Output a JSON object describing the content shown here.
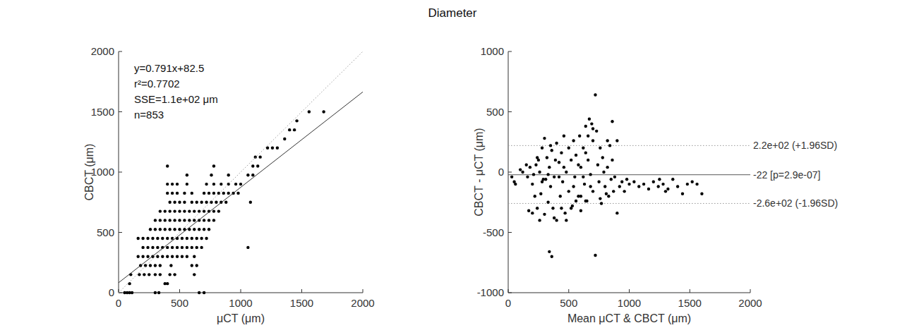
{
  "title": "Diameter",
  "chart_data": [
    {
      "type": "scatter",
      "xlabel": "μCT (μm)",
      "ylabel": "CBCT (μm)",
      "xlim": [
        0,
        2000
      ],
      "ylim": [
        0,
        2000
      ],
      "xticks": [
        0,
        500,
        1000,
        1500,
        2000
      ],
      "yticks": [
        0,
        500,
        1000,
        1500,
        2000
      ],
      "grid": false,
      "annotations": [
        "y=0.791x+82.5",
        "r²=0.7702",
        "SSE=1.1e+02 μm",
        "n=853"
      ],
      "series": [
        {
          "type": "scatter",
          "color": "#000000",
          "marker": "circle",
          "x": [
            50,
            70,
            90,
            110,
            300,
            330,
            660,
            700,
            90,
            380,
            400,
            100,
            170,
            210,
            250,
            300,
            340,
            420,
            460,
            620,
            180,
            220,
            260,
            300,
            340,
            430,
            600,
            640,
            160,
            200,
            240,
            280,
            320,
            360,
            400,
            440,
            480,
            520,
            560,
            620,
            200,
            240,
            280,
            320,
            360,
            400,
            440,
            480,
            520,
            560,
            600,
            640,
            680,
            1060,
            160,
            200,
            240,
            280,
            320,
            360,
            400,
            440,
            480,
            520,
            560,
            600,
            640,
            680,
            720,
            260,
            300,
            340,
            380,
            420,
            460,
            500,
            540,
            580,
            620,
            660,
            700,
            740,
            300,
            340,
            380,
            420,
            460,
            500,
            540,
            580,
            620,
            660,
            700,
            740,
            780,
            340,
            380,
            420,
            460,
            500,
            540,
            580,
            620,
            660,
            700,
            740,
            780,
            820,
            420,
            460,
            500,
            540,
            600,
            640,
            680,
            720,
            760,
            800,
            840,
            880,
            1080,
            400,
            440,
            480,
            540,
            600,
            700,
            740,
            780,
            820,
            860,
            900,
            940,
            980,
            400,
            440,
            480,
            560,
            720,
            780,
            840,
            900,
            960,
            1000,
            560,
            760,
            900,
            1060,
            1100,
            400,
            780,
            1100,
            1140,
            1120,
            1160,
            1220,
            1260,
            1300,
            1360,
            1400,
            1440,
            1460,
            1560,
            1680
          ],
          "values": [
            0,
            0,
            0,
            0,
            0,
            0,
            0,
            0,
            75,
            75,
            75,
            150,
            150,
            150,
            150,
            150,
            150,
            150,
            150,
            150,
            225,
            225,
            225,
            225,
            225,
            225,
            225,
            225,
            300,
            300,
            300,
            300,
            300,
            300,
            300,
            300,
            300,
            300,
            300,
            300,
            375,
            375,
            375,
            375,
            375,
            375,
            375,
            375,
            375,
            375,
            375,
            375,
            375,
            375,
            450,
            450,
            450,
            450,
            450,
            450,
            450,
            450,
            450,
            450,
            450,
            450,
            450,
            450,
            450,
            525,
            525,
            525,
            525,
            525,
            525,
            525,
            525,
            525,
            525,
            525,
            525,
            525,
            600,
            600,
            600,
            600,
            600,
            600,
            600,
            600,
            600,
            600,
            600,
            600,
            600,
            675,
            675,
            675,
            675,
            675,
            675,
            675,
            675,
            675,
            675,
            675,
            675,
            675,
            750,
            750,
            750,
            750,
            750,
            750,
            750,
            750,
            750,
            750,
            750,
            750,
            750,
            825,
            825,
            825,
            825,
            825,
            825,
            825,
            825,
            825,
            825,
            825,
            825,
            825,
            900,
            900,
            900,
            900,
            900,
            900,
            900,
            900,
            900,
            900,
            975,
            975,
            975,
            975,
            975,
            1050,
            1050,
            1050,
            1050,
            1125,
            1125,
            1200,
            1200,
            1200,
            1275,
            1350,
            1350,
            1425,
            1500,
            1500
          ]
        },
        {
          "type": "line",
          "color": "#333333",
          "line_style": "solid",
          "x": [
            0,
            2000
          ],
          "values": [
            82.5,
            1664.5
          ]
        },
        {
          "type": "line",
          "color": "#9a9a9a",
          "line_style": "dotted",
          "x": [
            0,
            2000
          ],
          "values": [
            0,
            2000
          ]
        }
      ]
    },
    {
      "type": "scatter",
      "xlabel": "Mean μCT & CBCT (μm)",
      "ylabel": "CBCT - μCT (μm)",
      "xlim": [
        0,
        2000
      ],
      "ylim": [
        -1000,
        1000
      ],
      "xticks": [
        0,
        500,
        1000,
        1500,
        2000
      ],
      "yticks": [
        -1000,
        -500,
        0,
        500,
        1000
      ],
      "grid": false,
      "reference_lines": [
        {
          "value": 220,
          "label": "2.2e+02 (+1.96SD)",
          "line_style": "dotted",
          "color": "#9a9a9a"
        },
        {
          "value": -22,
          "label": "-22 [p=2.9e-07]",
          "line_style": "solid",
          "color": "#555555"
        },
        {
          "value": -260,
          "label": "-2.6e+02 (-1.96SD)",
          "line_style": "dotted",
          "color": "#9a9a9a"
        }
      ],
      "series": [
        {
          "type": "scatter",
          "color": "#000000",
          "marker": "circle",
          "x": [
            30,
            50,
            60,
            100,
            150,
            120,
            200,
            220,
            240,
            250,
            260,
            270,
            280,
            290,
            300,
            300,
            320,
            330,
            340,
            350,
            360,
            370,
            380,
            400,
            400,
            420,
            430,
            440,
            450,
            460,
            470,
            480,
            500,
            500,
            520,
            530,
            540,
            550,
            560,
            580,
            590,
            600,
            600,
            620,
            630,
            640,
            650,
            660,
            670,
            680,
            690,
            700,
            700,
            720,
            720,
            730,
            740,
            750,
            760,
            770,
            780,
            790,
            800,
            820,
            830,
            840,
            850,
            860,
            870,
            880,
            900,
            900,
            920,
            940,
            960,
            980,
            160,
            180,
            170,
            200,
            240,
            260,
            310,
            340,
            360,
            380,
            440,
            480,
            520,
            560,
            600,
            640,
            680,
            620,
            580,
            540,
            460,
            420,
            390,
            350,
            330,
            280,
            230,
            210,
            640,
            700,
            760,
            810,
            860,
            660,
            820,
            1000,
            1040,
            1080,
            1120,
            1160,
            1200,
            1240,
            1280,
            1320,
            1360,
            1400,
            1440,
            1480,
            1520,
            1600,
            1560,
            1300,
            1250
          ],
          "values": [
            -40,
            -80,
            -100,
            20,
            60,
            0,
            -100,
            -200,
            -300,
            100,
            0,
            -180,
            200,
            -60,
            280,
            -350,
            120,
            -250,
            40,
            -120,
            180,
            -300,
            -40,
            240,
            -400,
            80,
            -200,
            160,
            -80,
            300,
            -340,
            0,
            200,
            -160,
            100,
            -280,
            260,
            -40,
            140,
            -200,
            300,
            40,
            -320,
            200,
            -100,
            380,
            -240,
            100,
            440,
            -20,
            400,
            260,
            -160,
            640,
            -690,
            340,
            60,
            -80,
            200,
            -260,
            120,
            0,
            -120,
            40,
            -200,
            220,
            -60,
            100,
            -160,
            -40,
            260,
            -340,
            -120,
            -80,
            -160,
            -60,
            -40,
            40,
            -320,
            -340,
            120,
            -400,
            -60,
            -660,
            -700,
            -380,
            -300,
            -400,
            -300,
            -240,
            -200,
            -240,
            -120,
            -40,
            60,
            -120,
            40,
            -40,
            100,
            220,
            -20,
            -80,
            60,
            -20,
            160,
            360,
            -220,
            -180,
            420,
            300,
            260,
            -100,
            -80,
            -120,
            -100,
            -140,
            -80,
            -120,
            -100,
            -140,
            -60,
            -120,
            -180,
            -100,
            -80,
            -180,
            -100,
            -160,
            -60
          ]
        }
      ]
    }
  ]
}
